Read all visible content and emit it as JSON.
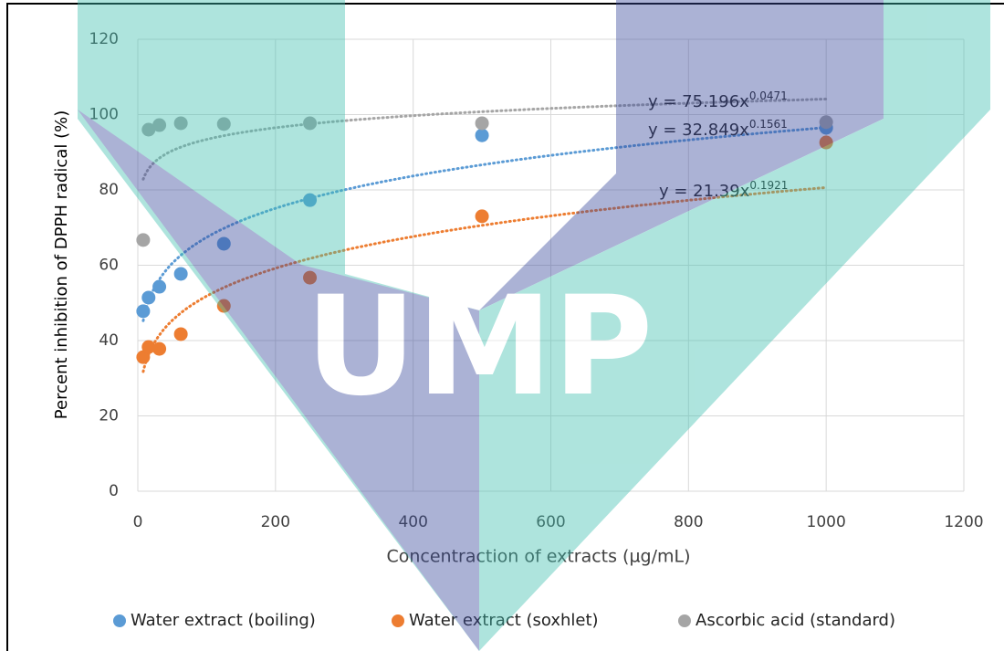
{
  "chart_data": {
    "type": "scatter",
    "watermark": "UMP",
    "x_label": "Concentraction of extracts (µg/mL)",
    "y_label": "Percent inhibition of DPPH radical (%)",
    "x": [
      7.8125,
      15.625,
      31.25,
      62.5,
      125,
      250,
      500,
      1000
    ],
    "series": [
      {
        "name": "Water extract (boiling)",
        "color": "#5b9bd5",
        "values": [
          47.8,
          51.4,
          54.3,
          57.7,
          65.7,
          77.3,
          94.5,
          96.5
        ],
        "trendline": {
          "a": 32.849,
          "b": 0.1561,
          "label": "y = 32.849x",
          "exponent_label": "0.1561"
        }
      },
      {
        "name": "Water extract (soxhlet)",
        "color": "#ed7d31",
        "values": [
          35.6,
          38.3,
          37.8,
          41.7,
          49.2,
          56.7,
          73,
          92.6
        ],
        "trendline": {
          "a": 21.39,
          "b": 0.1921,
          "label": "y = 21.39x",
          "exponent_label": "0.1921"
        }
      },
      {
        "name": "Ascorbic acid (standard)",
        "color": "#a5a5a5",
        "values": [
          66.7,
          96,
          97.2,
          97.7,
          97.5,
          97.7,
          97.7,
          98
        ],
        "trendline": {
          "a": 75.196,
          "b": 0.0471,
          "label": "y = 75.196x",
          "exponent_label": "0.0471"
        }
      }
    ],
    "xlim": [
      0,
      1200
    ],
    "xticks": [
      0,
      200,
      400,
      600,
      800,
      1000,
      1200
    ],
    "ylim": [
      0,
      120
    ],
    "yticks": [
      0,
      20,
      40,
      60,
      80,
      100,
      120
    ],
    "grid": true,
    "legend": "bottom"
  }
}
